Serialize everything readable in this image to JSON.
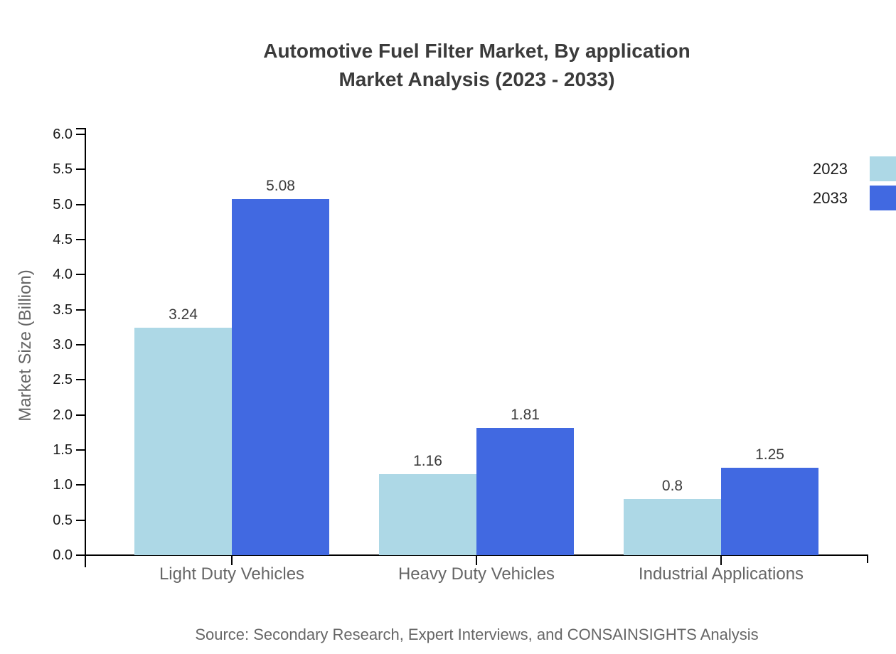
{
  "title": {
    "line1": "Automotive Fuel Filter Market, By application",
    "line2": "Market Analysis (2023 - 2033)"
  },
  "source_text": "Source: Secondary Research, Expert Interviews, and CONSAINSIGHTS Analysis",
  "legend": {
    "items": [
      {
        "label": "2023",
        "color": "#ADD8E6"
      },
      {
        "label": "2033",
        "color": "#4169E1"
      }
    ]
  },
  "chart_data": {
    "type": "bar",
    "title": "Automotive Fuel Filter Market, By application Market Analysis (2023 - 2033)",
    "categories": [
      "Light Duty Vehicles",
      "Heavy Duty Vehicles",
      "Industrial Applications"
    ],
    "series": [
      {
        "name": "2023",
        "color": "#ADD8E6",
        "values": [
          3.24,
          1.16,
          0.8
        ]
      },
      {
        "name": "2033",
        "color": "#4169E1",
        "values": [
          5.08,
          1.81,
          1.25
        ]
      }
    ],
    "xlabel": "",
    "ylabel": "Market Size (Billion)",
    "ylim": [
      0,
      6
    ],
    "ytick_step": 0.5,
    "ytick_format_decimals": 1,
    "grid": false,
    "bar_value_labels": true,
    "legend_position": "outside-upper-right"
  }
}
